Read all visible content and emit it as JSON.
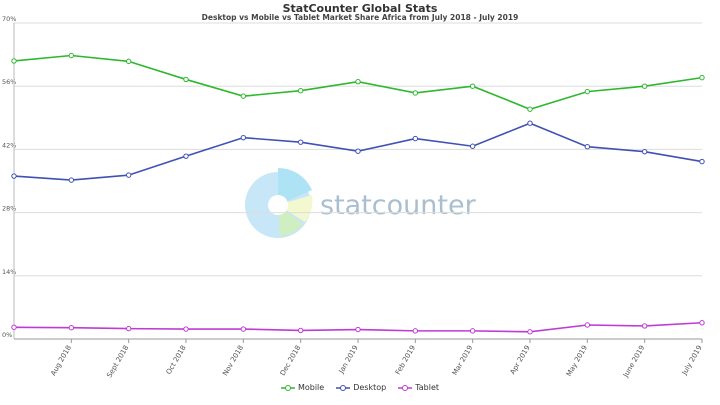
{
  "chart_data": {
    "type": "line",
    "title": "StatCounter Global Stats",
    "subtitle": "Desktop vs Mobile vs Tablet Market Share Africa from July 2018 - July 2019",
    "watermark": "statcounter",
    "categories": [
      "July 2018",
      "Aug 2018",
      "Sept 2018",
      "Oct 2018",
      "Nov 2018",
      "Dec 2018",
      "Jan 2019",
      "Feb 2019",
      "Mar 2019",
      "Apr 2019",
      "May 2019",
      "June 2019",
      "July 2019"
    ],
    "x_tick_labels": [
      "Aug 2018",
      "Sept 2018",
      "Oct 2018",
      "Nov 2018",
      "Dec 2018",
      "Jan 2019",
      "Feb 2019",
      "Mar 2019",
      "Apr 2019",
      "May 2019",
      "June 2019",
      "July 2019"
    ],
    "y_ticks": [
      "0%",
      "14%",
      "28%",
      "42%",
      "56%",
      "70%"
    ],
    "ylim": [
      0,
      70
    ],
    "grid": true,
    "legend_position": "bottom",
    "series": [
      {
        "name": "Mobile",
        "color": "#2eb82e",
        "values": [
          61.6,
          62.8,
          61.5,
          57.5,
          53.8,
          55.0,
          57.0,
          54.5,
          56.0,
          50.9,
          54.8,
          56.0,
          57.9
        ]
      },
      {
        "name": "Desktop",
        "color": "#3f51b5",
        "values": [
          36.1,
          35.2,
          36.3,
          40.5,
          44.6,
          43.6,
          41.6,
          44.4,
          42.7,
          47.8,
          42.6,
          41.5,
          39.3
        ]
      },
      {
        "name": "Tablet",
        "color": "#c03ad6",
        "values": [
          2.6,
          2.5,
          2.3,
          2.2,
          2.2,
          1.9,
          2.1,
          1.8,
          1.8,
          1.6,
          3.1,
          2.9,
          3.6
        ]
      }
    ]
  }
}
